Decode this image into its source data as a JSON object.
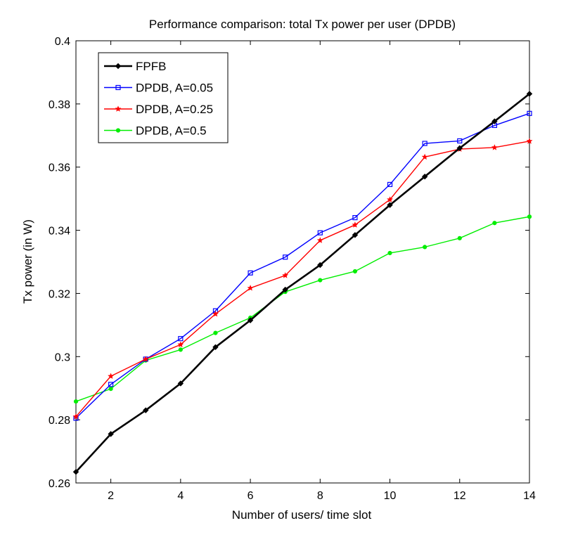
{
  "chart_data": {
    "type": "line",
    "title": "Performance comparison: total Tx power per user (DPDB)",
    "xlabel": "Number of users/ time slot",
    "ylabel": "Tx power (in W)",
    "xlim": [
      1,
      14
    ],
    "ylim": [
      0.26,
      0.4
    ],
    "xticks": [
      2,
      4,
      6,
      8,
      10,
      12,
      14
    ],
    "xtick_labels": [
      "2",
      "4",
      "6",
      "8",
      "10",
      "12",
      "14"
    ],
    "yticks": [
      0.26,
      0.28,
      0.3,
      0.32,
      0.34,
      0.36,
      0.38,
      0.4
    ],
    "ytick_labels": [
      "0.26",
      "0.28",
      "0.3",
      "0.32",
      "0.34",
      "0.36",
      "0.38",
      "0.4"
    ],
    "grid": false,
    "legend_position": "top-left",
    "x": [
      1,
      2,
      3,
      4,
      5,
      6,
      7,
      8,
      9,
      10,
      11,
      12,
      13,
      14
    ],
    "series": [
      {
        "name": "FPFB",
        "color": "#000000",
        "marker": "diamond",
        "values": [
          0.2635,
          0.2755,
          0.283,
          0.2915,
          0.303,
          0.3115,
          0.3212,
          0.329,
          0.3385,
          0.348,
          0.357,
          0.366,
          0.3745,
          0.3832
        ]
      },
      {
        "name": "DPDB, A=0.05",
        "color": "#0000ff",
        "marker": "square",
        "values": [
          0.2805,
          0.2912,
          0.2992,
          0.3057,
          0.3145,
          0.3265,
          0.3315,
          0.3392,
          0.344,
          0.3545,
          0.3675,
          0.3683,
          0.3732,
          0.377
        ]
      },
      {
        "name": "DPDB, A=0.25",
        "color": "#ff0000",
        "marker": "star",
        "values": [
          0.281,
          0.2938,
          0.2992,
          0.3038,
          0.3135,
          0.3217,
          0.3257,
          0.3368,
          0.3417,
          0.3497,
          0.3632,
          0.3657,
          0.3662,
          0.3682
        ]
      },
      {
        "name": "DPDB, A=0.5",
        "color": "#00ee00",
        "marker": "dot",
        "values": [
          0.2858,
          0.2898,
          0.2988,
          0.3022,
          0.3075,
          0.3123,
          0.3205,
          0.3242,
          0.327,
          0.3328,
          0.3347,
          0.3375,
          0.3423,
          0.3443
        ]
      }
    ]
  }
}
